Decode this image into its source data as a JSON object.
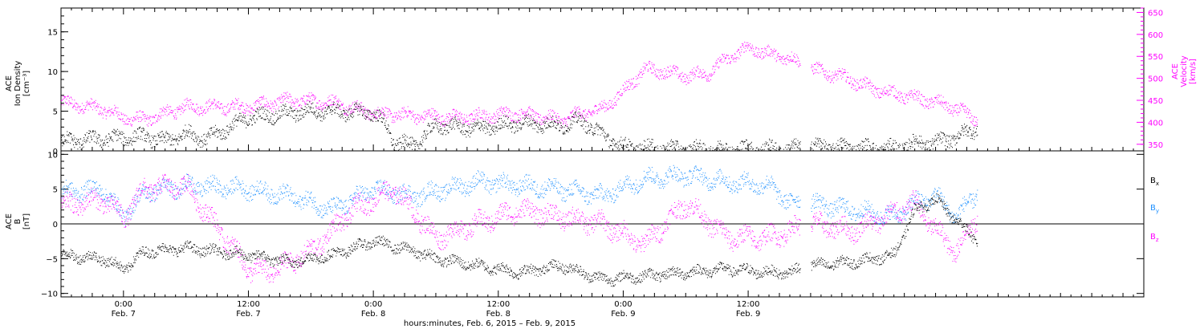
{
  "colors": {
    "black": "#000000",
    "magenta": "#ff00ff",
    "blue": "#1e90ff"
  },
  "chart_data": [
    {
      "type": "scatter",
      "panel": "top",
      "left_axis": {
        "label_lines": [
          "ACE",
          "Ion Density",
          "[cm⁻³]"
        ],
        "ylim": [
          0,
          18
        ],
        "ticks": [
          0,
          5,
          10,
          15
        ],
        "tick_labels": [
          "0",
          "5",
          "10",
          "15"
        ]
      },
      "right_axis": {
        "label_lines": [
          "ACE",
          "Velocity",
          "[km/s]"
        ],
        "ylim": [
          335,
          660
        ],
        "ticks": [
          350,
          400,
          450,
          500,
          550,
          600,
          650
        ],
        "tick_labels": [
          "350",
          "400",
          "450",
          "500",
          "550",
          "600",
          "650"
        ]
      },
      "series": [
        {
          "name": "",
          "axis": "left",
          "color": "black",
          "unit": "cm^-3",
          "x_hours": [
            0,
            4,
            8,
            10,
            12,
            14,
            18,
            24,
            30,
            31,
            32,
            34,
            36,
            40,
            44,
            48,
            50,
            52,
            54,
            56,
            60,
            62,
            64,
            66,
            70,
            72,
            76,
            80,
            82,
            84,
            86,
            88
          ],
          "values": [
            1.2,
            1.5,
            1.8,
            1.2,
            2.2,
            1.5,
            4.2,
            5.0,
            4.8,
            3.5,
            1.0,
            0.8,
            3.2,
            2.8,
            3.5,
            3.2,
            3.8,
            2.0,
            0.5,
            0.4,
            0.2,
            0.2,
            0.2,
            0.3,
            0.2,
            0.6,
            0.4,
            0.3,
            1.0,
            1.0,
            1.8,
            2.8
          ]
        },
        {
          "name": "",
          "axis": "right",
          "color": "magenta",
          "unit": "km/s",
          "x_hours": [
            0,
            4,
            6,
            8,
            12,
            18,
            22,
            26,
            30,
            34,
            38,
            44,
            48,
            50,
            52,
            54,
            56,
            58,
            60,
            62,
            64,
            66,
            68,
            70,
            72,
            74,
            76,
            78,
            80,
            82,
            84,
            86,
            88
          ],
          "values": [
            445,
            430,
            410,
            405,
            435,
            435,
            450,
            445,
            420,
            415,
            410,
            420,
            405,
            420,
            430,
            470,
            520,
            515,
            505,
            510,
            545,
            570,
            555,
            545,
            520,
            510,
            495,
            475,
            465,
            455,
            445,
            430,
            405
          ]
        }
      ],
      "data_gap_hours": [
        71,
        72
      ]
    },
    {
      "type": "scatter",
      "panel": "bottom",
      "left_axis": {
        "label_lines": [
          "ACE",
          "B",
          "[nT]"
        ],
        "ylim": [
          -10.5,
          10.5
        ],
        "ticks": [
          -10,
          -5,
          0,
          5,
          10
        ],
        "tick_labels": [
          "−10",
          "−5",
          "0",
          "5",
          "10"
        ]
      },
      "zero_line": true,
      "legend": [
        {
          "text": "B",
          "sub": "x",
          "color": "black"
        },
        {
          "text": "B",
          "sub": "y",
          "color": "blue"
        },
        {
          "text": "B",
          "sub": "z",
          "color": "magenta"
        }
      ],
      "series": [
        {
          "name": "Bx",
          "color": "black",
          "x_hours": [
            0,
            4,
            6,
            8,
            12,
            18,
            22,
            26,
            30,
            34,
            36,
            40,
            44,
            48,
            52,
            56,
            60,
            64,
            68,
            70,
            72,
            76,
            80,
            82,
            84,
            86,
            88
          ],
          "values": [
            -4.5,
            -5.0,
            -6.5,
            -4.0,
            -3.5,
            -4.5,
            -5.5,
            -4.5,
            -2.5,
            -4.0,
            -5.0,
            -6.0,
            -7.0,
            -6.0,
            -8.0,
            -7.5,
            -7.0,
            -6.5,
            -7.0,
            -7.0,
            -6.0,
            -5.5,
            -4.5,
            2.0,
            3.5,
            0.5,
            -2.5
          ]
        },
        {
          "name": "By",
          "color": "blue",
          "x_hours": [
            0,
            4,
            6,
            8,
            12,
            18,
            22,
            26,
            30,
            34,
            40,
            44,
            48,
            52,
            56,
            60,
            64,
            68,
            70,
            72,
            76,
            80,
            82,
            84,
            86,
            88
          ],
          "values": [
            4.5,
            5.0,
            1.0,
            4.5,
            5.5,
            5.0,
            4.0,
            2.0,
            5.0,
            4.0,
            6.0,
            5.5,
            5.0,
            4.0,
            6.5,
            7.0,
            6.0,
            5.5,
            3.0,
            3.0,
            2.0,
            1.0,
            3.0,
            4.0,
            1.0,
            4.5
          ]
        },
        {
          "name": "Bz",
          "color": "magenta",
          "x_hours": [
            0,
            4,
            6,
            8,
            12,
            18,
            20,
            24,
            28,
            32,
            36,
            40,
            44,
            48,
            52,
            56,
            60,
            64,
            68,
            72,
            76,
            80,
            82,
            84,
            86,
            88
          ],
          "values": [
            2.5,
            3.5,
            1.0,
            5.0,
            5.5,
            -6.5,
            -7.0,
            -4.0,
            2.0,
            5.0,
            -2.0,
            0.0,
            2.0,
            1.0,
            0.0,
            -3.0,
            3.0,
            -2.0,
            -2.0,
            0.0,
            -1.0,
            1.5,
            3.0,
            -1.0,
            -4.0,
            1.0
          ]
        }
      ],
      "data_gap_hours": [
        71,
        72
      ]
    }
  ],
  "x_axis": {
    "range_hours": [
      0,
      104
    ],
    "tick_labels": [
      {
        "hour": 6,
        "time": "0:00",
        "date": "Feb. 7"
      },
      {
        "hour": 18,
        "time": "12:00",
        "date": "Feb. 7"
      },
      {
        "hour": 30,
        "time": "0:00",
        "date": "Feb. 8"
      },
      {
        "hour": 42,
        "time": "12:00",
        "date": "Feb. 8"
      },
      {
        "hour": 54,
        "time": "0:00",
        "date": "Feb. 9"
      },
      {
        "hour": 66,
        "time": "12:00",
        "date": "Feb. 9"
      }
    ],
    "title": "hours:minutes, Feb.  6, 2015 – Feb.  9, 2015"
  }
}
